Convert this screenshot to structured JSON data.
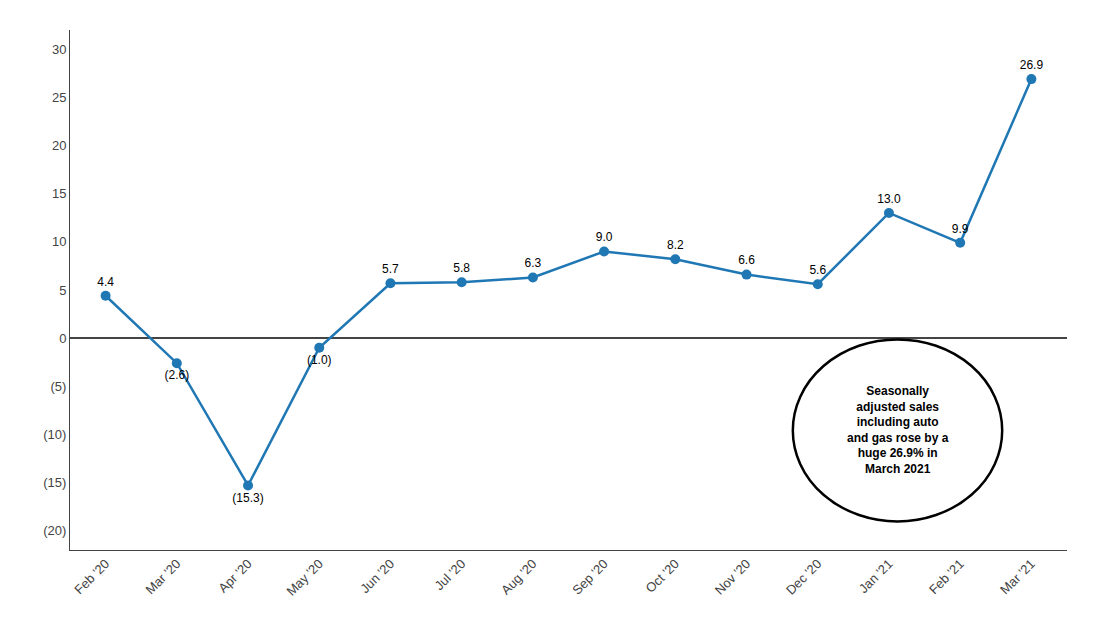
{
  "chart_data": {
    "type": "line",
    "categories": [
      "Feb '20",
      "Mar '20",
      "Apr '20",
      "May '20",
      "Jun '20",
      "Jul '20",
      "Aug '20",
      "Sep '20",
      "Oct '20",
      "Nov '20",
      "Dec '20",
      "Jan '21",
      "Feb '21",
      "Mar '21"
    ],
    "values": [
      4.4,
      -2.6,
      -15.3,
      -1.0,
      5.7,
      5.8,
      6.3,
      9.0,
      8.2,
      6.6,
      5.6,
      13.0,
      9.9,
      26.9
    ],
    "value_labels": [
      "4.4",
      "(2.6)",
      "(15.3)",
      "(1.0)",
      "5.7",
      "5.8",
      "6.3",
      "9.0",
      "8.2",
      "6.6",
      "5.6",
      "13.0",
      "9.9",
      "26.9"
    ],
    "data_labels": true,
    "marker": "circle",
    "ylim": [
      -22,
      32
    ],
    "yticks": [
      {
        "value": -20,
        "label": "(20)"
      },
      {
        "value": -15,
        "label": "(15)"
      },
      {
        "value": -10,
        "label": "(10)"
      },
      {
        "value": -5,
        "label": "(5)"
      },
      0,
      5,
      10,
      15,
      20,
      25,
      30
    ],
    "grid": false,
    "annotation": "Seasonally\nadjusted sales\nincluding auto\nand gas rose by a\nhuge 26.9% in\nMarch 2021"
  }
}
